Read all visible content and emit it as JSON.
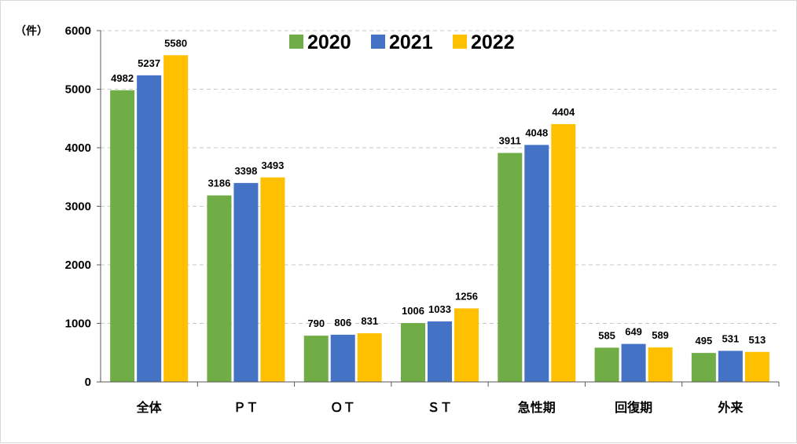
{
  "chart_data": {
    "type": "bar",
    "y_unit": "（件）",
    "categories": [
      "全体",
      "ＰＴ",
      "ＯＴ",
      "ＳＴ",
      "急性期",
      "回復期",
      "外来"
    ],
    "series": [
      {
        "name": "2020",
        "color": "#70ad47",
        "values": [
          4982,
          3186,
          790,
          1006,
          3911,
          585,
          495
        ]
      },
      {
        "name": "2021",
        "color": "#4472c4",
        "values": [
          5237,
          3398,
          806,
          1033,
          4048,
          649,
          531
        ]
      },
      {
        "name": "2022",
        "color": "#ffc000",
        "values": [
          5580,
          3493,
          831,
          1256,
          4404,
          589,
          513
        ]
      }
    ],
    "ylim": [
      0,
      6000
    ],
    "yticks": [
      0,
      1000,
      2000,
      3000,
      4000,
      5000,
      6000
    ],
    "grid": true,
    "gridline_color": "#c8c8c8",
    "legend_position": "top-center"
  }
}
